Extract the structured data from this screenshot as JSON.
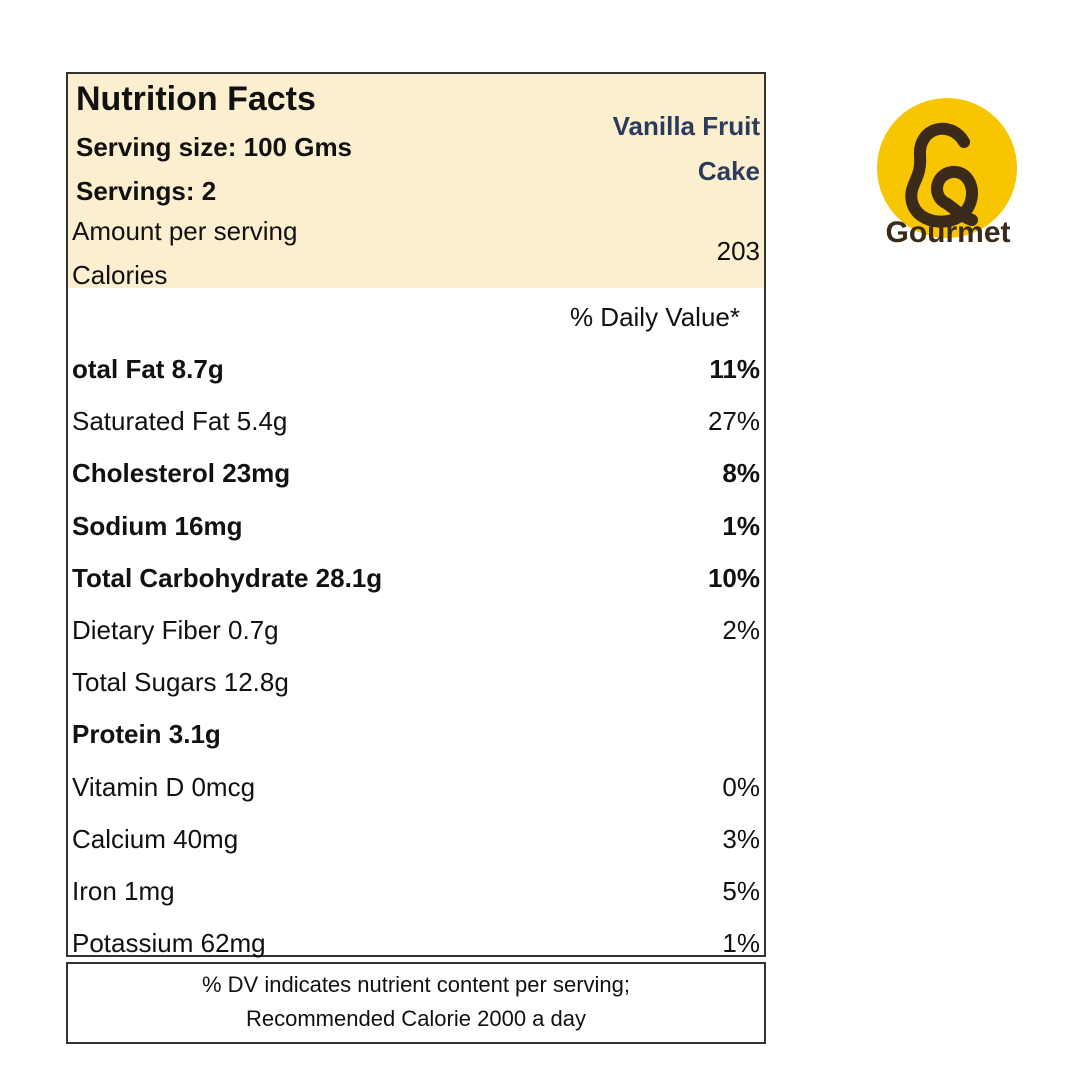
{
  "label": {
    "title": "Nutrition Facts",
    "serving_size": "Serving size: 100 Gms",
    "servings": "Servings: 2",
    "amount_per_serving": "Amount per serving",
    "calories_label": "Calories",
    "calories_value": "203",
    "product_name_line1": "Vanilla Fruit",
    "product_name_line2": "Cake",
    "daily_value_header": "% Daily Value*",
    "rows": [
      {
        "name": "otal Fat 8.7g",
        "pct": "11%",
        "bold": true
      },
      {
        "name": "Saturated Fat 5.4g",
        "pct": "27%",
        "bold": false
      },
      {
        "name": "Cholesterol 23mg",
        "pct": "8%",
        "bold": true
      },
      {
        "name": "Sodium 16mg",
        "pct": "1%",
        "bold": true
      },
      {
        "name": "Total Carbohydrate 28.1g",
        "pct": "10%",
        "bold": true
      },
      {
        "name": "Dietary Fiber 0.7g",
        "pct": "2%",
        "bold": false
      },
      {
        "name": "Total Sugars 12.8g",
        "pct": "",
        "bold": false
      },
      {
        "name": "Protein 3.1g",
        "pct": "",
        "bold": true
      },
      {
        "name": "Vitamin D 0mcg",
        "pct": "0%",
        "bold": false
      },
      {
        "name": "Calcium 40mg",
        "pct": "3%",
        "bold": false
      },
      {
        "name": "Iron 1mg",
        "pct": "5%",
        "bold": false
      },
      {
        "name": "Potassium 62mg",
        "pct": "1%",
        "bold": false
      }
    ]
  },
  "footnote": {
    "line1": "% DV indicates nutrient content per serving;",
    "line2": "Recommended Calorie 2000 a day"
  },
  "brand": {
    "name": "Gourmet",
    "logo_color": "#f7c600",
    "logo_mark_color": "#3b2a1a",
    "icon": "brand-logo-icon"
  },
  "colors": {
    "header_bg": "#fcefcf",
    "product_name": "#2a3b5e"
  }
}
